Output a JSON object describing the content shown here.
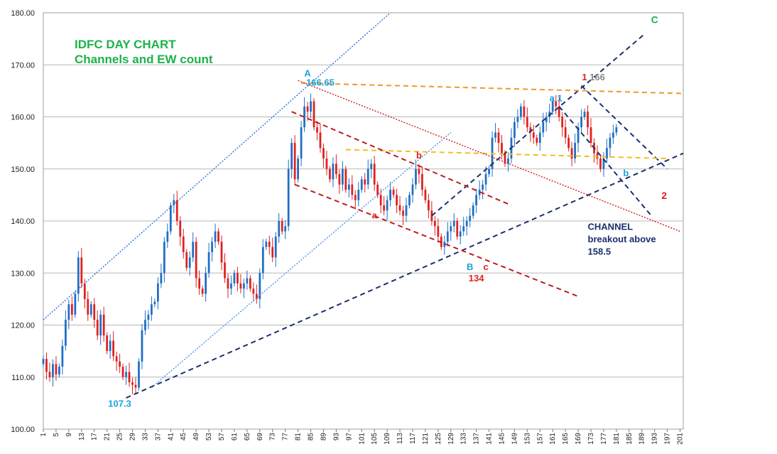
{
  "chart_data": {
    "type": "candlestick",
    "title_lines": [
      "IDFC DAY CHART",
      "Channels and EW count"
    ],
    "ylim": [
      100,
      180
    ],
    "yticks": [
      100,
      110,
      120,
      130,
      140,
      150,
      160,
      170,
      180
    ],
    "ytick_labels": [
      "100.00",
      "110.00",
      "120.00",
      "130.00",
      "140.00",
      "150.00",
      "160.00",
      "170.00",
      "180.00"
    ],
    "xlim": [
      1,
      202
    ],
    "xtick_start": 1,
    "xtick_step": 4,
    "xtick_end": 201,
    "grid": "horizontal",
    "colors": {
      "up": "#1f6fc4",
      "down": "#e02020",
      "grid": "#b8b8b8",
      "title": "#1bb34a"
    },
    "closes": [
      113.5,
      111,
      110,
      112.5,
      110.5,
      112,
      116,
      121,
      124,
      122,
      126,
      133,
      128,
      125,
      122,
      124,
      121,
      118,
      122,
      118,
      115,
      117,
      114,
      113,
      112,
      110,
      111,
      109,
      108.5,
      108,
      113,
      119,
      121,
      122,
      124,
      124.5,
      128,
      130,
      136,
      138,
      143,
      144,
      140,
      137,
      134,
      131,
      133,
      136,
      129,
      127,
      126,
      130,
      134,
      136,
      138,
      136,
      132,
      129,
      127,
      128,
      130,
      128,
      127,
      128,
      129,
      127,
      126,
      125,
      130,
      135,
      136,
      135,
      133,
      137,
      140,
      138,
      139,
      150,
      155,
      148,
      152,
      158,
      162,
      161,
      163,
      158,
      157,
      154,
      152,
      150,
      148,
      151,
      149,
      147,
      150,
      146,
      147,
      145,
      144,
      146,
      148,
      147,
      150,
      151,
      147,
      145,
      143,
      142,
      144,
      146,
      145,
      143,
      142,
      141,
      143,
      145,
      147,
      150,
      149,
      146,
      144,
      142,
      140,
      139,
      137,
      135,
      136,
      138,
      139,
      140,
      137,
      138,
      139,
      140,
      141,
      143,
      145,
      146,
      147,
      149,
      150,
      156,
      157,
      155,
      153,
      151,
      152,
      156,
      159,
      160,
      162,
      160,
      158,
      157,
      156,
      155,
      157,
      159,
      160,
      161,
      163,
      162,
      160,
      158,
      156,
      154,
      152,
      155,
      158,
      160,
      161,
      158,
      155,
      153,
      152,
      150,
      152,
      154,
      156,
      157,
      158
    ],
    "annotations": [
      {
        "text": "A",
        "x": 84,
        "y": 167.8,
        "color": "#1aa3dc",
        "size": 13
      },
      {
        "text": "166.65",
        "x": 88,
        "y": 166.0,
        "color": "#1aa3dc",
        "size": 13
      },
      {
        "text": "a 1",
        "x": 162,
        "y": 163.0,
        "color": "#1aa3dc",
        "size": 13
      },
      {
        "text": "1",
        "x": 171,
        "y": 167.0,
        "color": "#e02020",
        "size": 13
      },
      {
        "text": "166",
        "x": 175,
        "y": 167.0,
        "color": "#888888",
        "size": 13
      },
      {
        "text": "C",
        "x": 193,
        "y": 178.0,
        "color": "#1bb34a",
        "size": 14
      },
      {
        "text": "b",
        "x": 119,
        "y": 152.0,
        "color": "#e02020",
        "size": 13
      },
      {
        "text": "a",
        "x": 105,
        "y": 140.5,
        "color": "#e02020",
        "size": 13
      },
      {
        "text": "B",
        "x": 135,
        "y": 130.6,
        "color": "#1aa3dc",
        "size": 13
      },
      {
        "text": "c",
        "x": 140,
        "y": 130.6,
        "color": "#e02020",
        "size": 13
      },
      {
        "text": "134",
        "x": 137,
        "y": 128.4,
        "color": "#e02020",
        "size": 13
      },
      {
        "text": "b",
        "x": 184,
        "y": 148.6,
        "color": "#1aa3dc",
        "size": 13
      },
      {
        "text": "2",
        "x": 196,
        "y": 144.2,
        "color": "#e02020",
        "size": 14
      },
      {
        "text": "107.3",
        "x": 25,
        "y": 104.3,
        "color": "#1aa3dc",
        "size": 13
      },
      {
        "text": "CHANNEL",
        "x": 172,
        "y": 138.3,
        "color": "#1c2f6e",
        "size": 13,
        "anchor": "start"
      },
      {
        "text": "breakout above",
        "x": 172,
        "y": 135.9,
        "color": "#1c2f6e",
        "size": 13,
        "anchor": "start"
      },
      {
        "text": "158.5",
        "x": 172,
        "y": 133.5,
        "color": "#1c2f6e",
        "size": 13,
        "anchor": "start"
      }
    ],
    "trendlines": [
      {
        "name": "dotted-blue-upper",
        "x1": 1,
        "y1": 121,
        "x2": 110,
        "y2": 180,
        "color": "#3a7cd6",
        "dash": "2,2",
        "width": 1.5
      },
      {
        "name": "dotted-blue-lower",
        "x1": 35,
        "y1": 108,
        "x2": 129,
        "y2": 157,
        "color": "#5a9ae6",
        "dash": "2,2",
        "width": 1.5
      },
      {
        "name": "navy-lower-support",
        "x1": 27,
        "y1": 106,
        "x2": 202,
        "y2": 153,
        "color": "#1c2f6e",
        "dash": "7,5",
        "width": 2
      },
      {
        "name": "navy-inner-channel",
        "x1": 123,
        "y1": 141,
        "x2": 190,
        "y2": 176,
        "color": "#1c2f6e",
        "dash": "7,5",
        "width": 2
      },
      {
        "name": "navy-falling-upper",
        "x1": 170,
        "y1": 166,
        "x2": 197,
        "y2": 150,
        "color": "#1c2f6e",
        "dash": "7,5",
        "width": 2
      },
      {
        "name": "navy-falling-lower",
        "x1": 163,
        "y1": 162,
        "x2": 192,
        "y2": 141,
        "color": "#1c2f6e",
        "dash": "7,5",
        "width": 2
      },
      {
        "name": "orange-resistance",
        "x1": 82,
        "y1": 166.5,
        "x2": 202,
        "y2": 164.5,
        "color": "#f0972e",
        "dash": "7,5",
        "width": 2
      },
      {
        "name": "yellow-mid",
        "x1": 96,
        "y1": 153.7,
        "x2": 197,
        "y2": 152,
        "color": "#f0c020",
        "dash": "7,5",
        "width": 2
      },
      {
        "name": "red-dotted-upper",
        "x1": 81,
        "y1": 167,
        "x2": 201,
        "y2": 138,
        "color": "#d42a2a",
        "dash": "2,2",
        "width": 1.5
      },
      {
        "name": "red-dashed-channel-top",
        "x1": 79,
        "y1": 161,
        "x2": 148,
        "y2": 143,
        "color": "#c01c1c",
        "dash": "7,5",
        "width": 2
      },
      {
        "name": "red-dashed-channel-bottom",
        "x1": 80,
        "y1": 147,
        "x2": 169,
        "y2": 125.5,
        "color": "#c01c1c",
        "dash": "7,5",
        "width": 2
      }
    ]
  }
}
